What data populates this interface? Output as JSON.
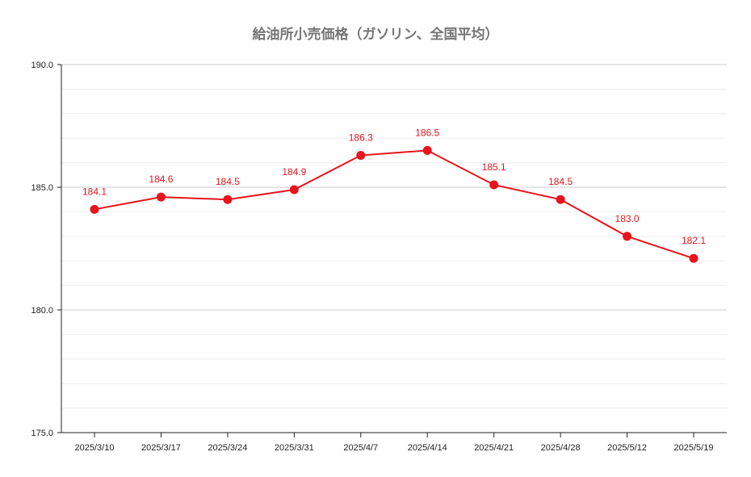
{
  "chart_data": {
    "type": "line",
    "title": "給油所小売価格（ガソリン、全国平均）",
    "categories": [
      "2025/3/10",
      "2025/3/17",
      "2025/3/24",
      "2025/3/31",
      "2025/4/7",
      "2025/4/14",
      "2025/4/21",
      "2025/4/28",
      "2025/5/12",
      "2025/5/19"
    ],
    "series": [
      {
        "values": [
          184.1,
          184.6,
          184.5,
          184.9,
          186.3,
          186.5,
          185.1,
          184.5,
          183.0,
          182.1
        ]
      }
    ],
    "data_labels": [
      "184.1",
      "184.6",
      "184.5",
      "184.9",
      "186.3",
      "186.5",
      "185.1",
      "184.5",
      "183.0",
      "182.1"
    ],
    "ylim": [
      175.0,
      190.0
    ],
    "yticks": [
      "175.0",
      "180.0",
      "185.0",
      "190.0"
    ],
    "ytick_values": [
      175,
      180,
      185,
      190
    ],
    "minor_grid_step": 1,
    "xlabel": "",
    "ylabel": "",
    "grid": true,
    "legend": "none",
    "colors": {
      "line": "#e8141c",
      "grid": "#cccccc",
      "minor_grid": "#eeeeee",
      "axis": "#222222",
      "title": "#757575"
    }
  }
}
